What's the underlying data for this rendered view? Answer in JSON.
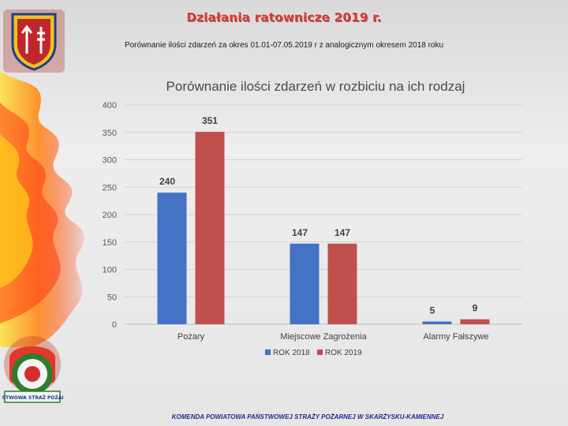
{
  "header": {
    "title": "Działania ratownicze 2019 r.",
    "subtitle": "Porównanie ilości zdarzeń za okres 01.01-07.05.2019 r z analogicznym okresem 2018 roku"
  },
  "footer": {
    "text": "KOMENDA POWIATOWA PAŃSTWOWEJ STRAŻY POŻARNEJ W SKARŻYSKU-KAMIENNEJ"
  },
  "logos": {
    "psp_text": "PAŃSTWOWA STRAŻ POŻARNA"
  },
  "colors": {
    "rok_2018": "#4472c4",
    "rok_2019": "#c0504d",
    "flame_outer": "#ff3b10",
    "flame_inner": "#ffd21a"
  },
  "chart_data": {
    "type": "bar",
    "title": "Porównanie ilości zdarzeń w rozbiciu na ich rodzaj",
    "categories": [
      "Pożary",
      "Miejscowe Zagrożenia",
      "Alarmy Fałszywe"
    ],
    "series": [
      {
        "name": "ROK 2018",
        "values": [
          240,
          147,
          5
        ],
        "color": "#4472c4"
      },
      {
        "name": "ROK 2019",
        "values": [
          351,
          147,
          9
        ],
        "color": "#c0504d"
      }
    ],
    "ylim": [
      0,
      400
    ],
    "yticks": [
      0,
      50,
      100,
      150,
      200,
      250,
      300,
      350,
      400
    ],
    "grid": true,
    "legend": "bottom"
  }
}
